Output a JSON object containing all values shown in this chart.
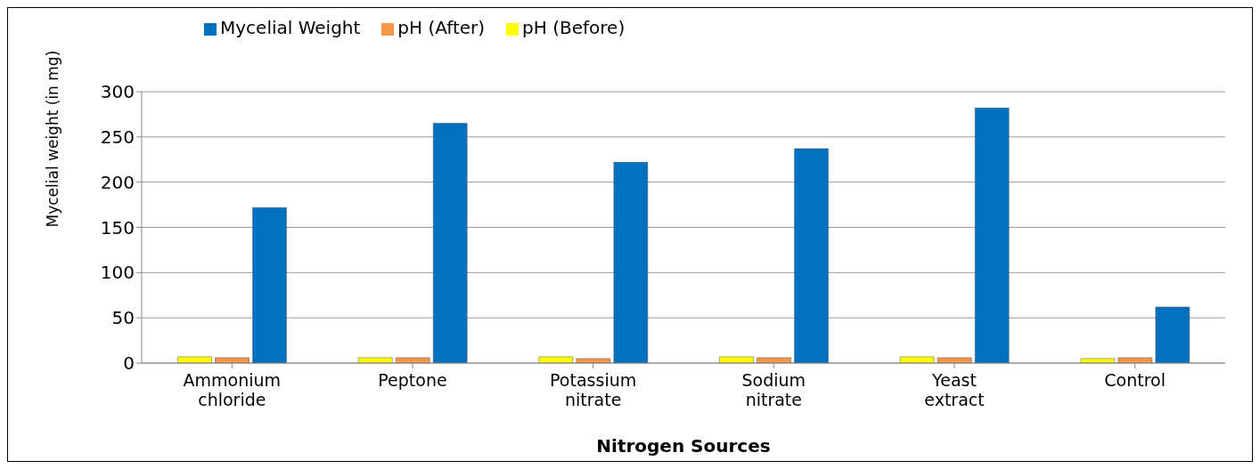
{
  "chart_data": {
    "type": "bar",
    "xlabel": "Nitrogen Sources",
    "ylabel": "Mycelial weight (in mg)",
    "categories": [
      "Ammonium chloride",
      "Peptone",
      "Potassium nitrate",
      "Sodium nitrate",
      "Yeast extract",
      "Control"
    ],
    "series": [
      {
        "name": "pH (Before)",
        "color": "#ffff00",
        "values": [
          7,
          6,
          7,
          7,
          7,
          5
        ]
      },
      {
        "name": "pH (After)",
        "color": "#f79646",
        "values": [
          6,
          6,
          5,
          6,
          6,
          6
        ]
      },
      {
        "name": "Mycelial Weight",
        "color": "#0070c0",
        "values": [
          172,
          265,
          222,
          237,
          282,
          62
        ]
      }
    ],
    "ylim": [
      0,
      300
    ],
    "yticks": [
      0,
      50,
      100,
      150,
      200,
      250,
      300
    ],
    "grid": "y",
    "legend": "top left"
  }
}
